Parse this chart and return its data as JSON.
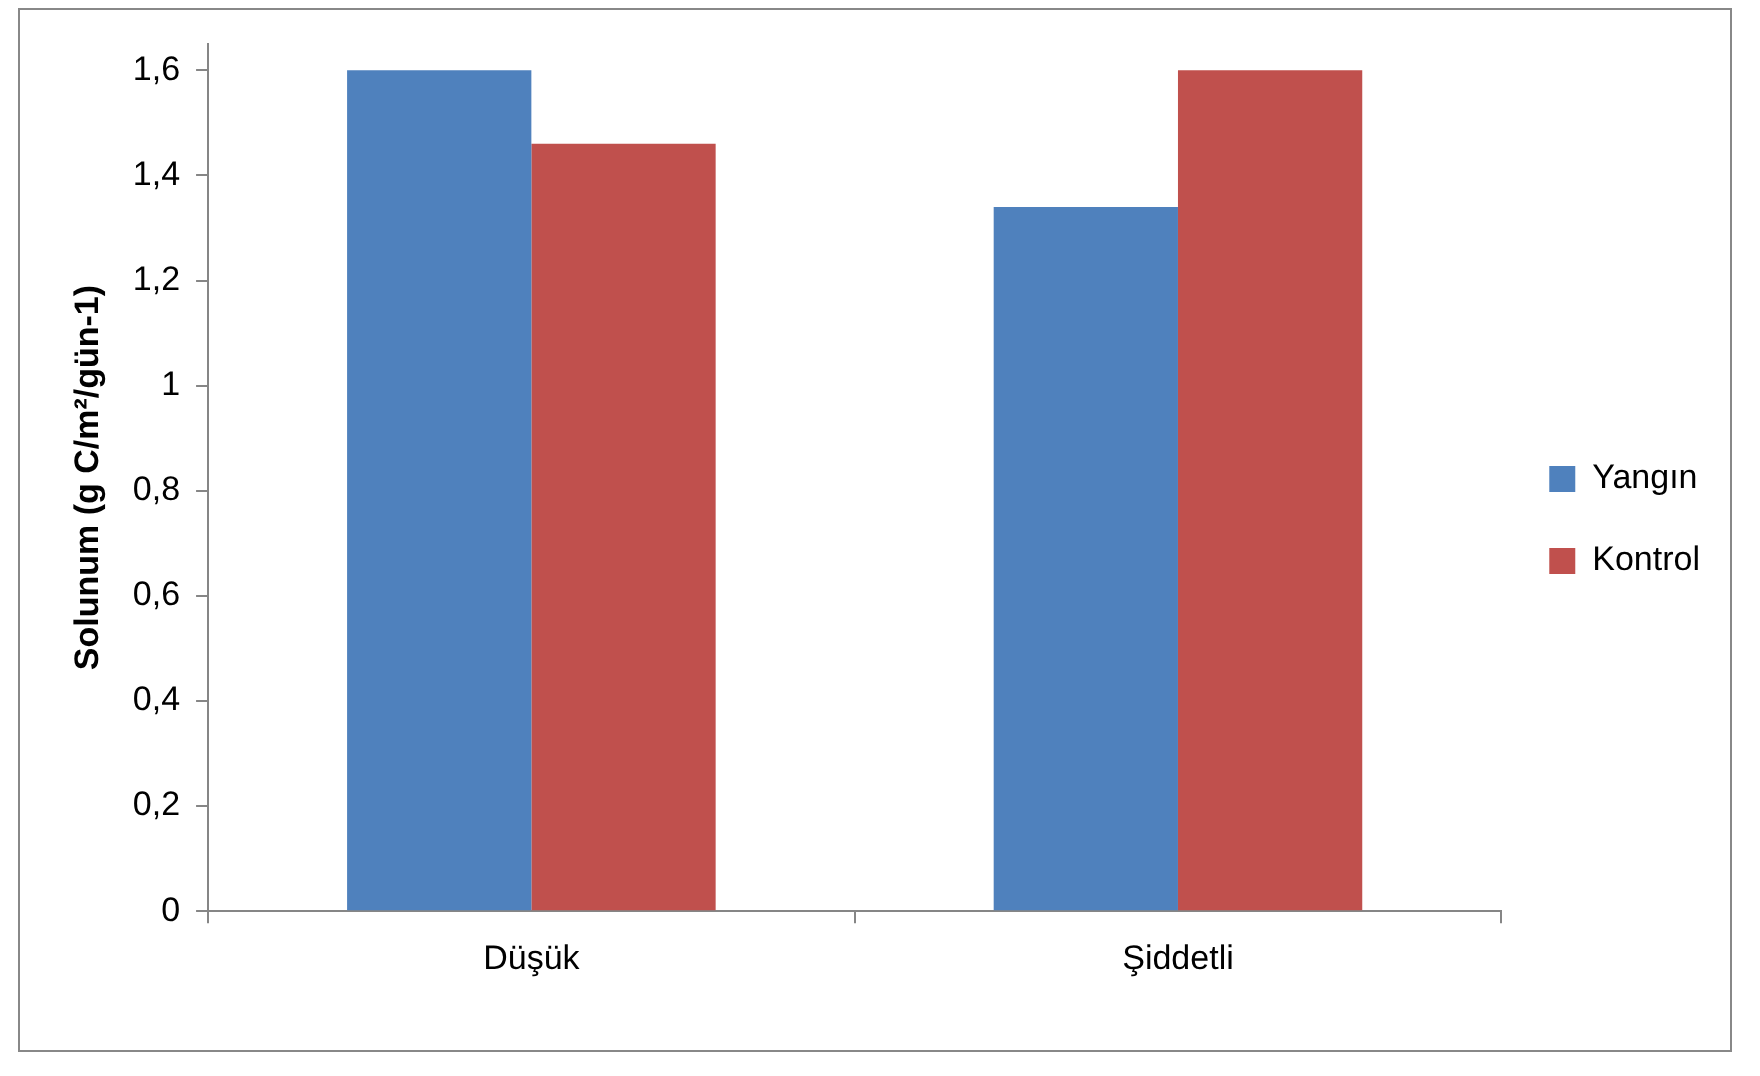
{
  "chart_data": {
    "type": "bar",
    "ylabel": "Solunum (g C/m²/gün-1)",
    "categories": [
      "Düşük",
      "Şiddetli"
    ],
    "series": [
      {
        "name": "Yangın",
        "color": "#4f81bd",
        "values": [
          1.6,
          1.34
        ]
      },
      {
        "name": "Kontrol",
        "color": "#c0504d",
        "values": [
          1.46,
          1.6
        ]
      }
    ],
    "ylim": [
      0,
      1.65
    ],
    "yticks": [
      0,
      {
        "value": 0.2,
        "label": "0,2"
      },
      {
        "value": 0.4,
        "label": "0,4"
      },
      {
        "value": 0.6,
        "label": "0,6"
      },
      {
        "value": 0.8,
        "label": "0,8"
      },
      1,
      {
        "value": 1.2,
        "label": "1,2"
      },
      {
        "value": 1.4,
        "label": "1,4"
      },
      {
        "value": 1.6,
        "label": "1,6"
      }
    ],
    "grid": false,
    "legend": "right"
  }
}
